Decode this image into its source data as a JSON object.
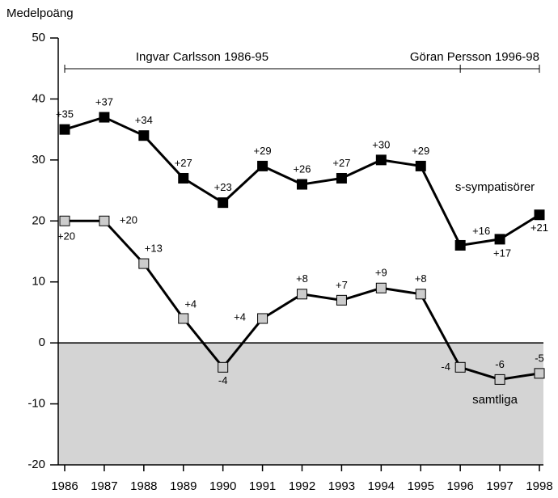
{
  "chart_data": {
    "type": "line",
    "ylabel": "Medelpoäng",
    "categories": [
      "1986",
      "1987",
      "1988",
      "1989",
      "1990",
      "1991",
      "1992",
      "1993",
      "1994",
      "1995",
      "1996",
      "1997",
      "1998"
    ],
    "ylim": [
      -20,
      50
    ],
    "yticks": [
      -20,
      -10,
      0,
      10,
      20,
      30,
      40,
      50
    ],
    "annotations": [
      "Ingvar Carlsson 1986-95",
      "Göran Persson 1996-98"
    ],
    "series": [
      {
        "name": "s-sympatisörer",
        "color": "#000000",
        "values": [
          35,
          37,
          34,
          27,
          23,
          29,
          26,
          27,
          30,
          29,
          16,
          17,
          21
        ],
        "value_labels": [
          "+35",
          "+37",
          "+34",
          "+27",
          "+23",
          "+29",
          "+26",
          "+27",
          "+30",
          "+29",
          "+16",
          "+17",
          "+21"
        ]
      },
      {
        "name": "samtliga",
        "color": "#cccccc",
        "values": [
          20,
          20,
          13,
          4,
          -4,
          4,
          8,
          7,
          9,
          8,
          -4,
          -6,
          -5
        ],
        "value_labels": [
          "+20",
          "+20",
          "+13",
          "+4",
          "-4",
          "+4",
          "+8",
          "+7",
          "+9",
          "+8",
          "-4",
          "-6",
          "-5"
        ]
      }
    ]
  }
}
